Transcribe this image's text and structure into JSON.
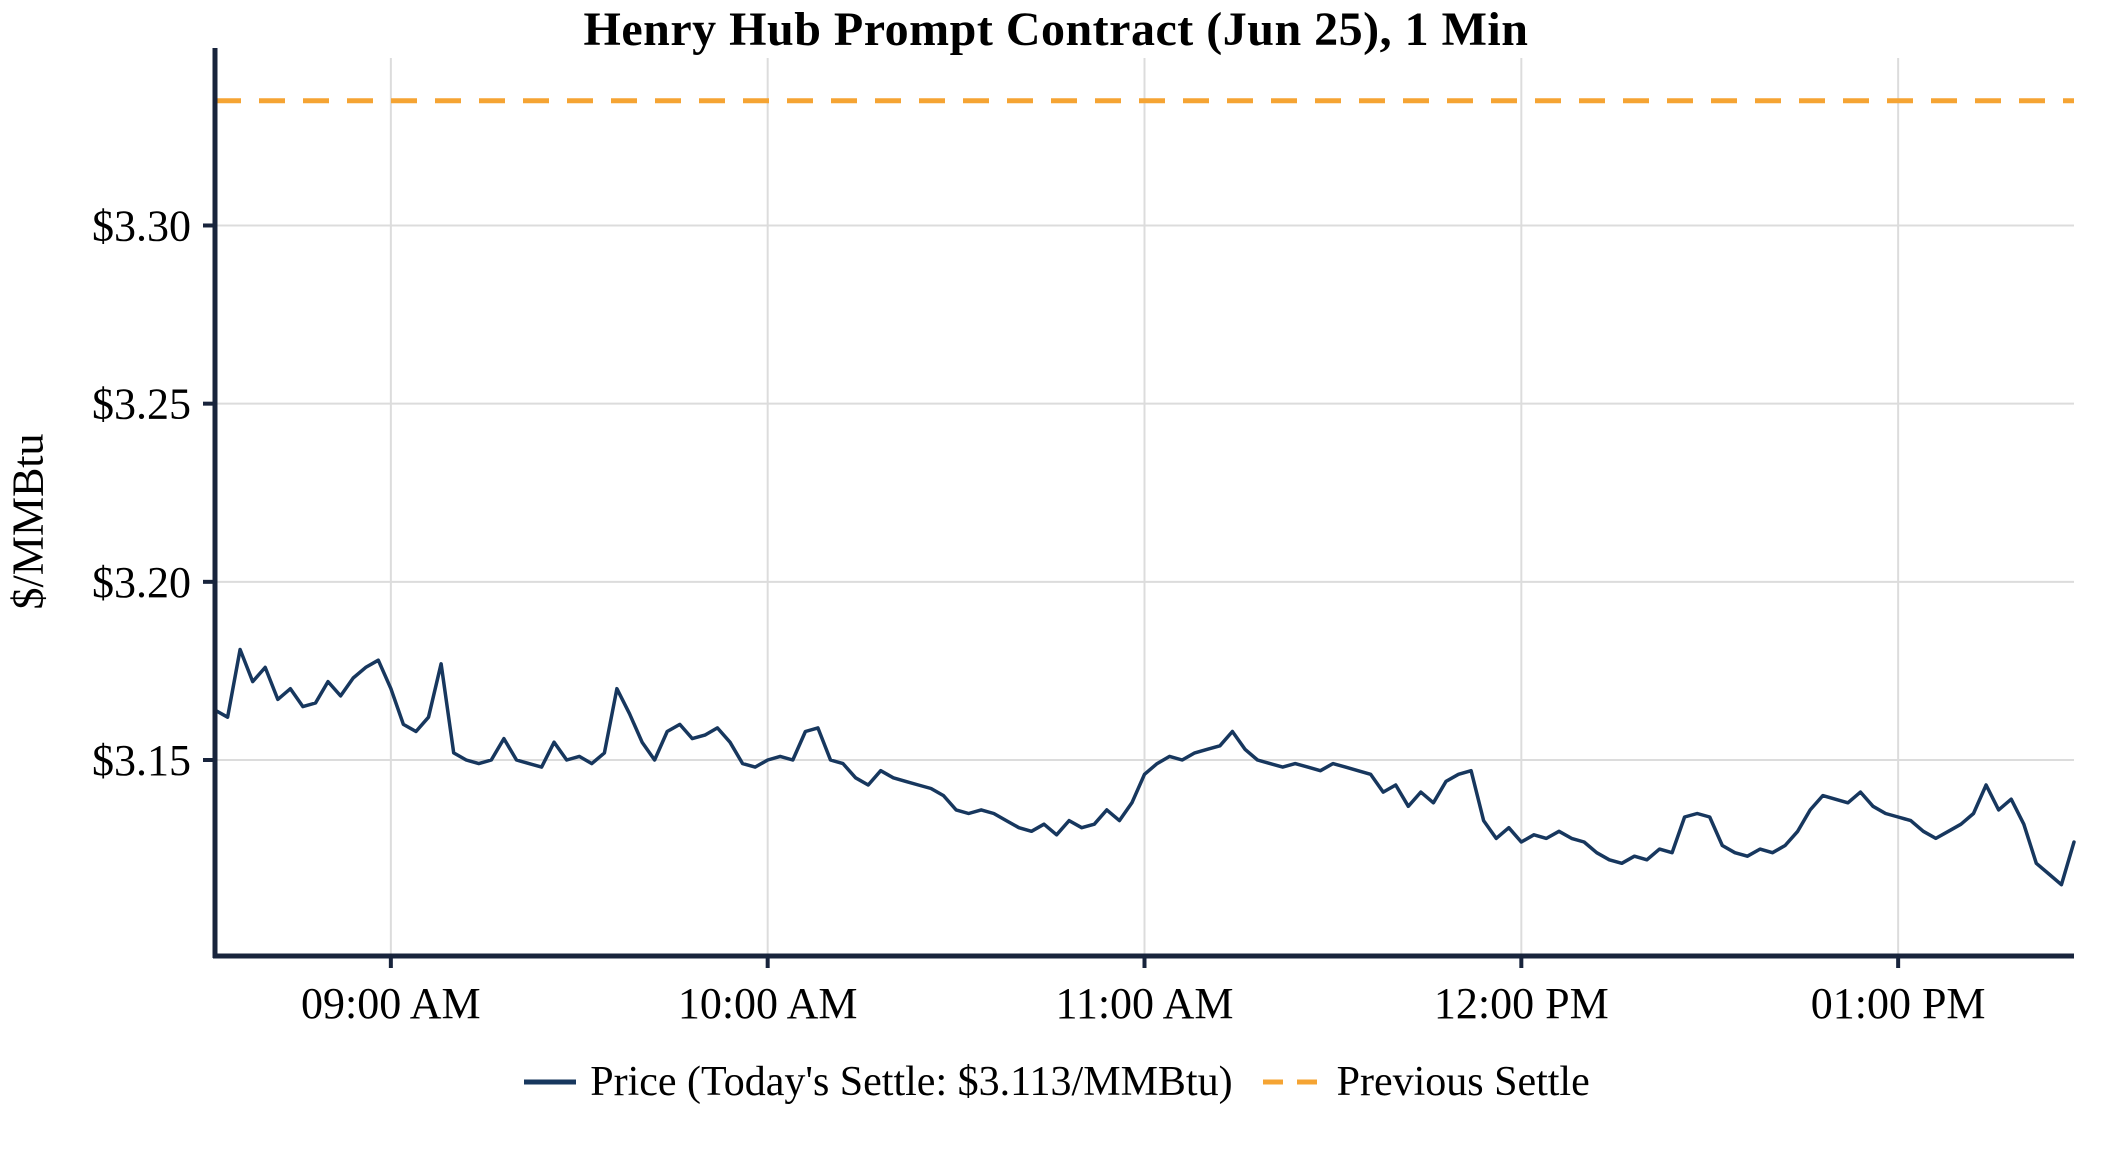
{
  "title": "Henry Hub Prompt Contract (Jun 25), 1 Min",
  "y_axis_label": "$/MMBtu",
  "legend": {
    "price_label": "Price (Today's Settle: $3.113/MMBtu)",
    "prev_settle_label": "Previous Settle"
  },
  "colors": {
    "price": "#17375E",
    "prev_settle": "#F5A433",
    "grid": "#DCDCDC",
    "spine": "#18243C",
    "text": "#000000"
  },
  "chart_data": {
    "type": "line",
    "title": "Henry Hub Prompt Contract (Jun 25), 1 Min",
    "xlabel": "",
    "ylabel": "$/MMBtu",
    "ylim": [
      3.095,
      3.347
    ],
    "grid": true,
    "legend_position": "bottom",
    "today_settle": 3.113,
    "previous_settle": 3.335,
    "x_units": "minutes_since_midnight",
    "x_range_minutes": [
      512,
      808
    ],
    "x_interval_minutes": 2,
    "y_ticks": [
      {
        "value": 3.15,
        "label": "$3.15"
      },
      {
        "value": 3.2,
        "label": "$3.20"
      },
      {
        "value": 3.25,
        "label": "$3.25"
      },
      {
        "value": 3.3,
        "label": "$3.30"
      }
    ],
    "x_ticks": [
      {
        "minute": 540,
        "label": "09:00 AM"
      },
      {
        "minute": 600,
        "label": "10:00 AM"
      },
      {
        "minute": 660,
        "label": "11:00 AM"
      },
      {
        "minute": 720,
        "label": "12:00 PM"
      },
      {
        "minute": 780,
        "label": "01:00 PM"
      }
    ],
    "series": [
      {
        "name": "Price (Today's Settle: $3.113/MMBtu)",
        "style": "solid",
        "color_ref": "price",
        "values": [
          3.164,
          3.162,
          3.181,
          3.172,
          3.176,
          3.167,
          3.17,
          3.165,
          3.166,
          3.172,
          3.168,
          3.173,
          3.176,
          3.178,
          3.17,
          3.16,
          3.158,
          3.162,
          3.177,
          3.152,
          3.15,
          3.149,
          3.15,
          3.156,
          3.15,
          3.149,
          3.148,
          3.155,
          3.15,
          3.151,
          3.149,
          3.152,
          3.17,
          3.163,
          3.155,
          3.15,
          3.158,
          3.16,
          3.156,
          3.157,
          3.159,
          3.155,
          3.149,
          3.148,
          3.15,
          3.151,
          3.15,
          3.158,
          3.159,
          3.15,
          3.149,
          3.145,
          3.143,
          3.147,
          3.145,
          3.144,
          3.143,
          3.142,
          3.14,
          3.136,
          3.135,
          3.136,
          3.135,
          3.133,
          3.131,
          3.13,
          3.132,
          3.129,
          3.133,
          3.131,
          3.132,
          3.136,
          3.133,
          3.138,
          3.146,
          3.149,
          3.151,
          3.15,
          3.152,
          3.153,
          3.154,
          3.158,
          3.153,
          3.15,
          3.149,
          3.148,
          3.149,
          3.148,
          3.147,
          3.149,
          3.148,
          3.147,
          3.146,
          3.141,
          3.143,
          3.137,
          3.141,
          3.138,
          3.144,
          3.146,
          3.147,
          3.133,
          3.128,
          3.131,
          3.127,
          3.129,
          3.128,
          3.13,
          3.128,
          3.127,
          3.124,
          3.122,
          3.121,
          3.123,
          3.122,
          3.125,
          3.124,
          3.134,
          3.135,
          3.134,
          3.126,
          3.124,
          3.123,
          3.125,
          3.124,
          3.126,
          3.13,
          3.136,
          3.14,
          3.139,
          3.138,
          3.141,
          3.137,
          3.135,
          3.134,
          3.133,
          3.13,
          3.128,
          3.13,
          3.132,
          3.135,
          3.143,
          3.136,
          3.139,
          3.132,
          3.121,
          3.118,
          3.115,
          3.127
        ]
      },
      {
        "name": "Previous Settle",
        "style": "dashed",
        "color_ref": "prev_settle",
        "constant_value": 3.335
      }
    ]
  }
}
